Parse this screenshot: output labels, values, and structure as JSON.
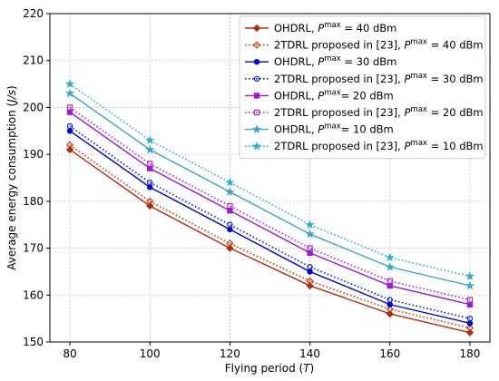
{
  "chart_data": {
    "type": "line",
    "title": "",
    "xlabel": "Flying period (T)",
    "ylabel": "Average energy consumption (J/s)",
    "x": [
      80,
      100,
      120,
      140,
      160,
      180
    ],
    "xlim": [
      75,
      185
    ],
    "ylim": [
      150,
      220
    ],
    "xticks": [
      "80",
      "100",
      "120",
      "140",
      "160",
      "180"
    ],
    "yticks": [
      "150",
      "160",
      "170",
      "180",
      "190",
      "200",
      "210",
      "220"
    ],
    "grid": true,
    "legend_position": "top-right",
    "series": [
      {
        "name": "OHDRL, Pmax = 40 dBm",
        "label_main": "OHDRL, ",
        "label_sup_base": "P",
        "label_sup": "max",
        "label_tail": " = 40 dBm",
        "values": [
          191,
          179,
          170,
          162,
          156,
          152
        ],
        "color": "#b22a0c",
        "dash": "solid",
        "marker": "diamond"
      },
      {
        "name": "2TDRL proposed in [23], Pmax = 40 dBm",
        "label_main": "2TDRL proposed in [23], ",
        "label_sup_base": "P",
        "label_sup": "max",
        "label_tail": " = 40 dBm",
        "values": [
          192,
          180,
          171,
          163,
          157,
          153
        ],
        "color": "#c2401a",
        "dash": "dotted",
        "marker": "diamond"
      },
      {
        "name": "OHDRL, Pmax = 30 dBm",
        "label_main": "OHDRL, ",
        "label_sup_base": "P",
        "label_sup": "max",
        "label_tail": " = 30 dBm",
        "values": [
          195,
          183,
          174,
          165,
          158,
          154
        ],
        "color": "#0000d0",
        "dash": "solid",
        "marker": "circle"
      },
      {
        "name": "2TDRL proposed in [23], Pmax = 30 dBm",
        "label_main": "2TDRL proposed in [23], ",
        "label_sup_base": "P",
        "label_sup": "max",
        "label_tail": " = 30 dBm",
        "values": [
          196,
          184,
          175,
          166,
          159,
          155
        ],
        "color": "#0a1ed8",
        "dash": "dotted",
        "marker": "circle"
      },
      {
        "name": "OHDRL, Pmax= 20 dBm",
        "label_main": "OHDRL, ",
        "label_sup_base": "P",
        "label_sup": "max",
        "label_tail": "= 20 dBm",
        "values": [
          199,
          187,
          178,
          169,
          162,
          158
        ],
        "color": "#9a1ad0",
        "dash": "solid",
        "marker": "square"
      },
      {
        "name": "2TDRL proposed in [23], Pmax = 20 dBm",
        "label_main": "2TDRL proposed in [23], ",
        "label_sup_base": "P",
        "label_sup": "max",
        "label_tail": " = 20 dBm",
        "values": [
          200,
          188,
          179,
          170,
          163,
          159
        ],
        "color": "#a82ad6",
        "dash": "dotted",
        "marker": "square"
      },
      {
        "name": "OHDRL, Pmax= 10 dBm",
        "label_main": "OHDRL, ",
        "label_sup_base": "P",
        "label_sup": "max",
        "label_tail": "= 10 dBm",
        "values": [
          203,
          191,
          182,
          173,
          166,
          162
        ],
        "color": "#3aa6c4",
        "dash": "solid",
        "marker": "star"
      },
      {
        "name": "2TDRL proposed in [23], Pmax = 10 dBm",
        "label_main": "2TDRL proposed in [23], ",
        "label_sup_base": "P",
        "label_sup": "max",
        "label_tail": " = 10 dBm",
        "values": [
          205,
          193,
          184,
          175,
          168,
          164
        ],
        "color": "#2fb0c8",
        "dash": "dotted",
        "marker": "star"
      }
    ]
  }
}
